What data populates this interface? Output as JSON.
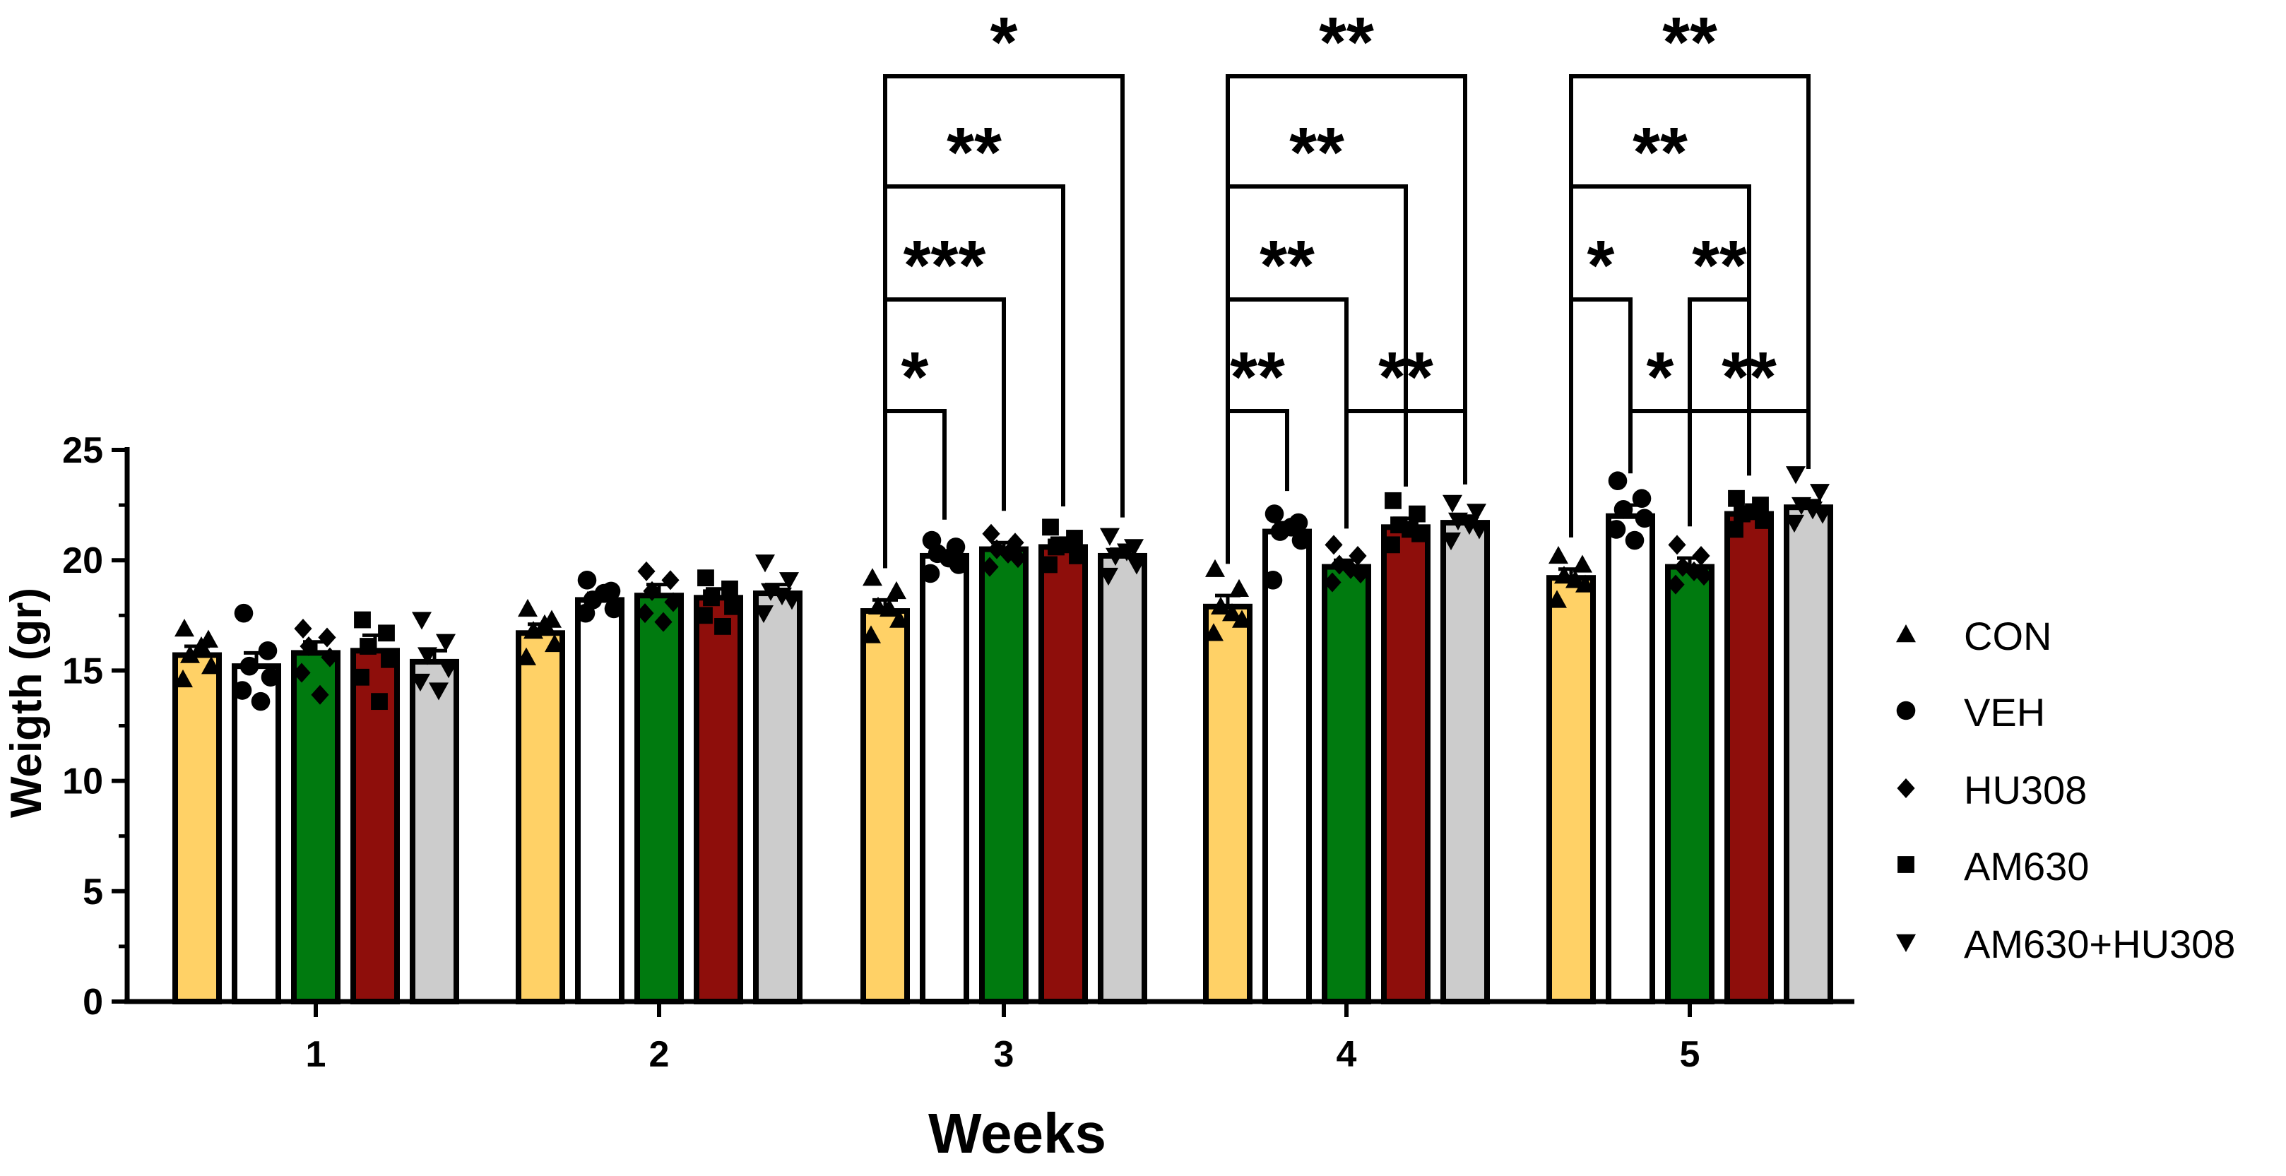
{
  "chart_data": {
    "type": "bar",
    "xlabel": "Weeks",
    "ylabel": "Weigth (gr)",
    "ylim": [
      0,
      25
    ],
    "yticks": [
      0,
      5,
      10,
      15,
      20,
      25
    ],
    "categories": [
      "1",
      "2",
      "3",
      "4",
      "5"
    ],
    "legend_position": "right",
    "series": [
      {
        "name": "CON",
        "marker": "triangle-up",
        "color": "#FFD166",
        "values": [
          15.7,
          16.7,
          17.7,
          17.9,
          19.2
        ],
        "sem": [
          0.4,
          0.4,
          0.5,
          0.5,
          0.4
        ],
        "points": [
          [
            16.9,
            16.4,
            15.7,
            15.2,
            14.6,
            16.1
          ],
          [
            17.8,
            17.3,
            16.8,
            16.2,
            15.6,
            17.1
          ],
          [
            19.2,
            18.6,
            17.9,
            17.3,
            16.6,
            17.8
          ],
          [
            19.6,
            18.7,
            17.9,
            17.3,
            16.7,
            17.6
          ],
          [
            20.2,
            19.8,
            19.3,
            18.9,
            18.2,
            19.1
          ]
        ]
      },
      {
        "name": "VEH",
        "marker": "circle",
        "color": "#FFFFFF",
        "values": [
          15.2,
          18.2,
          20.2,
          21.3,
          22.0
        ],
        "sem": [
          0.6,
          0.3,
          0.2,
          0.4,
          0.5
        ],
        "points": [
          [
            17.6,
            15.9,
            15.2,
            14.7,
            14.1,
            13.6
          ],
          [
            19.1,
            18.6,
            18.2,
            17.8,
            17.6,
            18.5
          ],
          [
            20.9,
            20.6,
            20.3,
            19.8,
            19.4,
            20.1
          ],
          [
            22.1,
            21.7,
            21.3,
            20.9,
            19.1,
            21.5
          ],
          [
            23.6,
            22.8,
            22.3,
            21.9,
            21.4,
            20.9
          ]
        ]
      },
      {
        "name": "HU308",
        "marker": "diamond",
        "color": "#007A0F",
        "values": [
          15.8,
          18.4,
          20.5,
          19.7,
          19.7
        ],
        "sem": [
          0.5,
          0.5,
          0.3,
          0.3,
          0.4
        ],
        "points": [
          [
            16.9,
            16.5,
            16.1,
            15.6,
            14.9,
            13.9
          ],
          [
            19.5,
            19.1,
            18.6,
            18.1,
            17.6,
            17.2
          ],
          [
            21.2,
            20.8,
            20.5,
            20.1,
            19.7,
            20.3
          ],
          [
            20.7,
            20.2,
            19.8,
            19.4,
            19.0,
            19.6
          ],
          [
            20.7,
            20.2,
            19.7,
            19.3,
            18.9,
            19.5
          ]
        ]
      },
      {
        "name": "AM630",
        "marker": "square",
        "color": "#8E0E0B",
        "values": [
          15.9,
          18.3,
          20.6,
          21.5,
          22.1
        ],
        "sem": [
          0.7,
          0.4,
          0.4,
          0.4,
          0.3
        ],
        "points": [
          [
            17.3,
            16.7,
            16.1,
            15.5,
            14.7,
            13.6
          ],
          [
            19.2,
            18.7,
            18.3,
            17.9,
            17.5,
            17.0
          ],
          [
            21.5,
            21.0,
            20.6,
            20.2,
            19.8,
            20.7
          ],
          [
            22.7,
            22.1,
            21.6,
            21.2,
            20.7,
            21.4
          ],
          [
            22.8,
            22.5,
            22.1,
            21.8,
            21.4,
            22.2
          ]
        ]
      },
      {
        "name": "AM630+HU308",
        "marker": "triangle-down",
        "color": "#CCCCCC",
        "values": [
          15.4,
          18.5,
          20.2,
          21.7,
          22.4
        ],
        "sem": [
          0.5,
          0.4,
          0.3,
          0.3,
          0.3
        ],
        "points": [
          [
            17.3,
            16.3,
            15.7,
            15.1,
            14.5,
            14.1
          ],
          [
            19.9,
            19.1,
            18.6,
            18.2,
            17.6,
            18.4
          ],
          [
            21.1,
            20.6,
            20.2,
            19.8,
            19.3,
            20.4
          ],
          [
            22.6,
            22.2,
            21.8,
            21.4,
            20.9,
            21.6
          ],
          [
            23.9,
            23.1,
            22.5,
            22.1,
            21.7,
            22.3
          ]
        ]
      }
    ],
    "significance": [
      {
        "week": "3",
        "from": 0,
        "to": 1,
        "label": "*",
        "level": 0
      },
      {
        "week": "3",
        "from": 0,
        "to": 2,
        "label": "***",
        "level": 1
      },
      {
        "week": "3",
        "from": 0,
        "to": 3,
        "label": "**",
        "level": 2
      },
      {
        "week": "3",
        "from": 0,
        "to": 4,
        "label": "*",
        "level": 3
      },
      {
        "week": "4",
        "from": 0,
        "to": 1,
        "label": "**",
        "level": 0
      },
      {
        "week": "4",
        "from": 2,
        "to": 4,
        "label": "**",
        "level": 0
      },
      {
        "week": "4",
        "from": 0,
        "to": 2,
        "label": "**",
        "level": 1
      },
      {
        "week": "4",
        "from": 0,
        "to": 3,
        "label": "**",
        "level": 2
      },
      {
        "week": "4",
        "from": 0,
        "to": 4,
        "label": "**",
        "level": 3
      },
      {
        "week": "5",
        "from": 1,
        "to": 2,
        "label": "*",
        "level": 0
      },
      {
        "week": "5",
        "from": 2,
        "to": 4,
        "label": "**",
        "level": 0
      },
      {
        "week": "5",
        "from": 0,
        "to": 1,
        "label": "*",
        "level": 1
      },
      {
        "week": "5",
        "from": 2,
        "to": 3,
        "label": "**",
        "level": 1
      },
      {
        "week": "5",
        "from": 0,
        "to": 3,
        "label": "**",
        "level": 2
      },
      {
        "week": "5",
        "from": 0,
        "to": 4,
        "label": "**",
        "level": 3
      }
    ]
  }
}
